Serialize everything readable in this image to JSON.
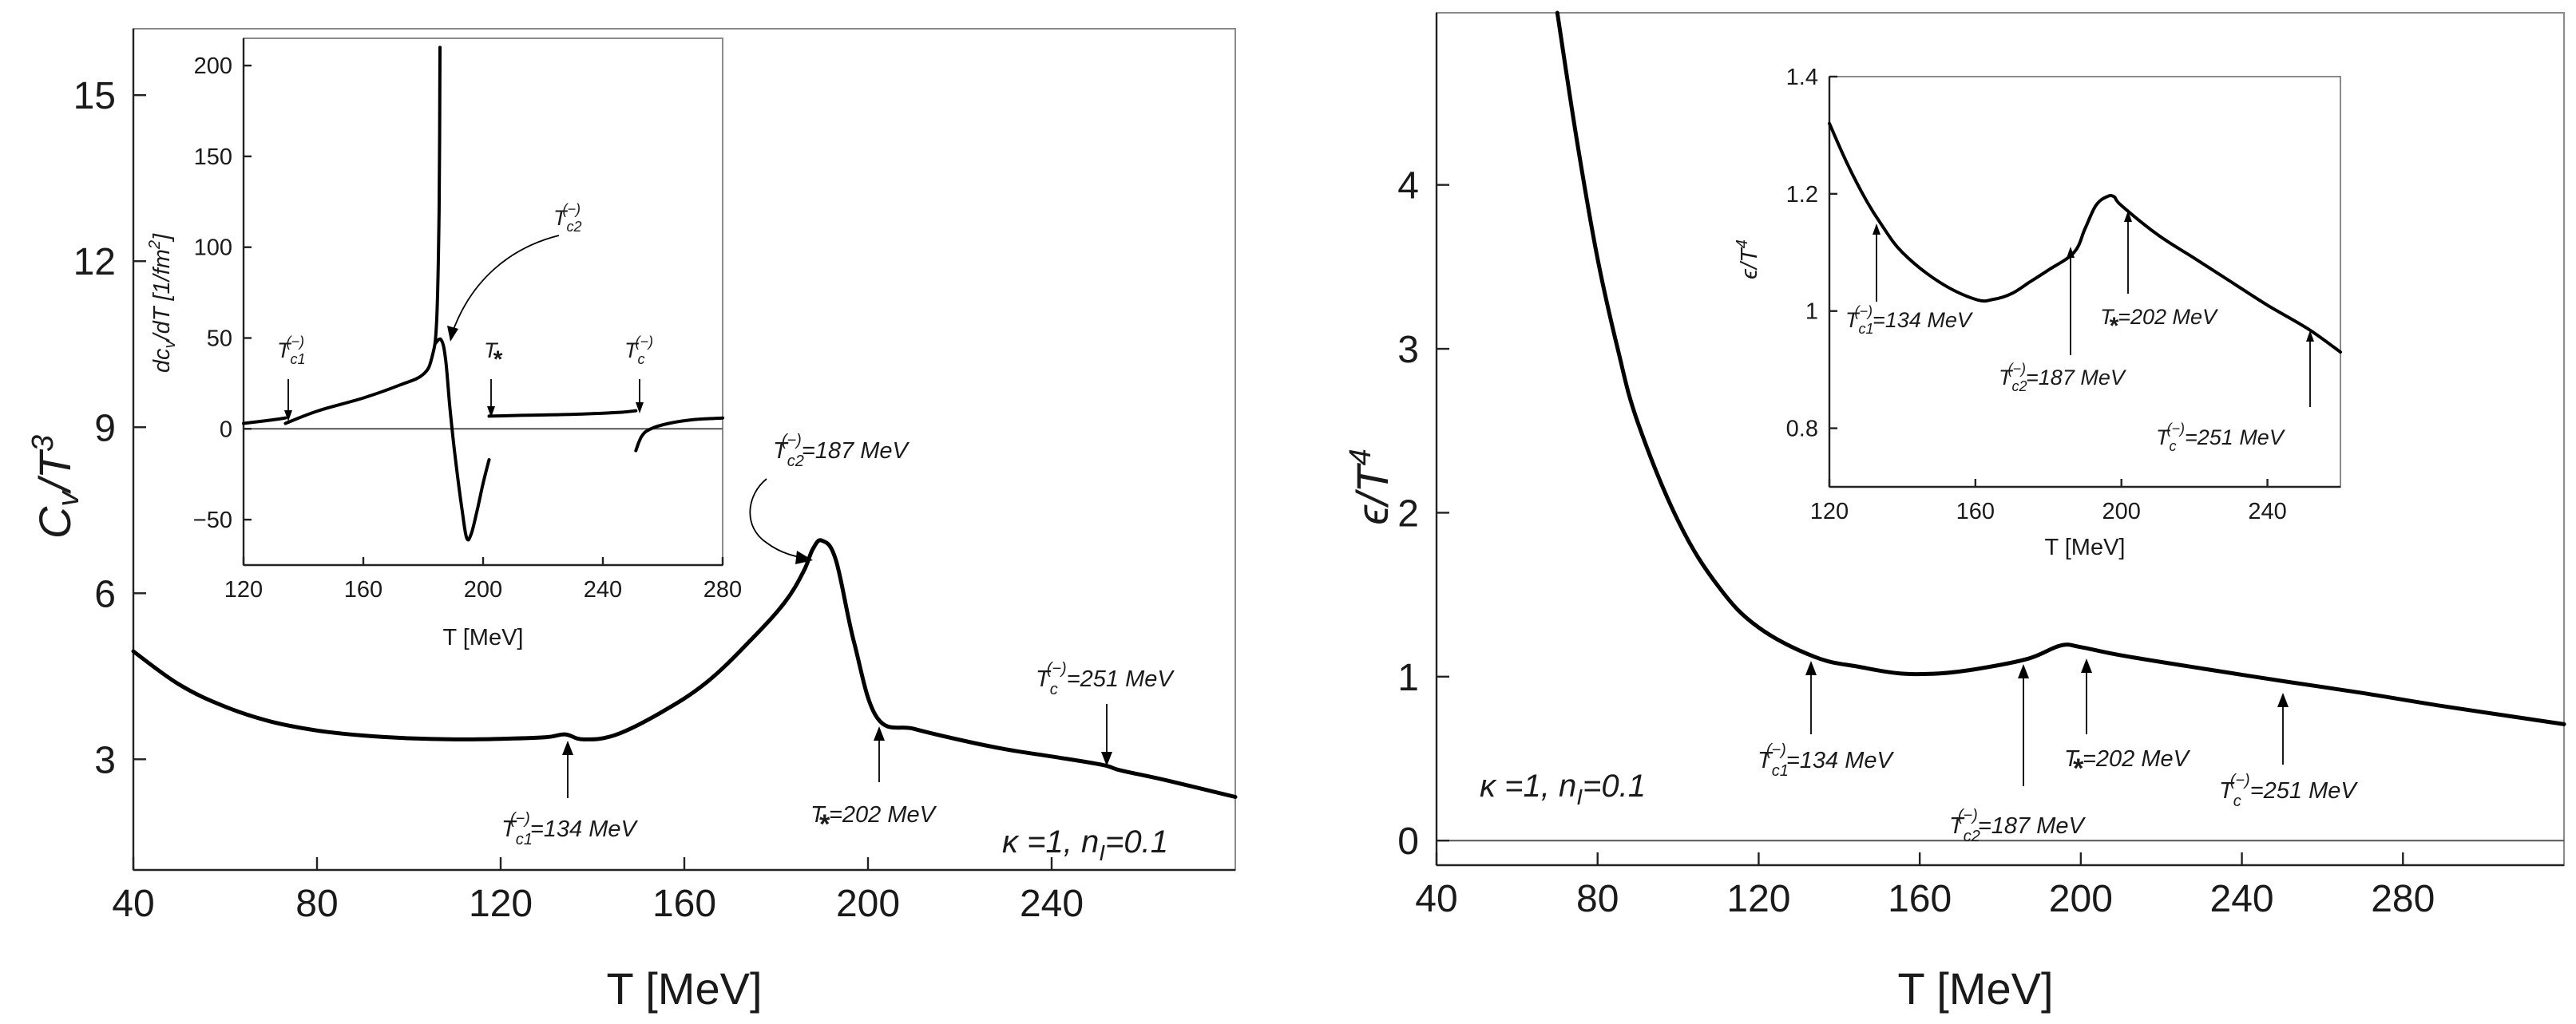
{
  "chart_data": [
    {
      "id": "cv",
      "type": "line",
      "xlabel": "T  [MeV]",
      "ylabel": "C_v/T^3",
      "xlim": [
        40,
        280
      ],
      "ylim": [
        1,
        16.2
      ],
      "xticks": [
        40,
        80,
        120,
        160,
        200,
        240
      ],
      "yticks": [
        3,
        6,
        9,
        12,
        15
      ],
      "grid": false,
      "note": "κ=1, n_I=0.1",
      "series": [
        {
          "name": "C_v/T^3",
          "x": [
            40,
            50,
            60,
            70,
            80,
            90,
            100,
            110,
            120,
            130,
            134,
            138,
            145,
            155,
            165,
            175,
            182,
            186,
            188,
            190,
            193,
            197,
            202,
            210,
            220,
            230,
            240,
            251,
            255,
            265,
            280
          ],
          "y": [
            4.95,
            4.35,
            3.95,
            3.68,
            3.52,
            3.43,
            3.38,
            3.36,
            3.37,
            3.4,
            3.45,
            3.36,
            3.44,
            3.85,
            4.4,
            5.2,
            5.85,
            6.4,
            6.8,
            6.95,
            6.6,
            5.1,
            3.75,
            3.55,
            3.35,
            3.18,
            3.05,
            2.9,
            2.8,
            2.62,
            2.32
          ]
        }
      ],
      "annotations": [
        {
          "label": "T",
          "sub": "c1",
          "sup": "(-)",
          "value": "=134 MeV",
          "x": 134
        },
        {
          "label": "T",
          "sub": "c2",
          "sup": "(-)",
          "value": "=187 MeV",
          "x": 187
        },
        {
          "label": "T",
          "sub": "*",
          "sup": "",
          "value": "=202 MeV",
          "x": 202
        },
        {
          "label": "T",
          "sub": "c",
          "sup": "(-)",
          "value": "=251 MeV",
          "x": 251
        }
      ]
    },
    {
      "id": "cv-inset",
      "type": "line",
      "xlabel": "T  [MeV]",
      "ylabel": "dc_v/dT  [1/fm^2]",
      "xlim": [
        120,
        280
      ],
      "ylim": [
        -75,
        215
      ],
      "xticks": [
        120,
        160,
        200,
        240,
        280
      ],
      "yticks": [
        -50,
        0,
        50,
        100,
        150,
        200
      ],
      "series": [
        {
          "name": "segment-1",
          "x": [
            120,
            130,
            134
          ],
          "y": [
            3,
            5,
            6
          ]
        },
        {
          "name": "segment-2",
          "x": [
            134,
            145,
            160,
            172,
            180,
            183,
            184.5,
            185.3,
            185.6
          ],
          "y": [
            3,
            10,
            17,
            24,
            30,
            40,
            60,
            120,
            210
          ]
        },
        {
          "name": "segment-3",
          "x": [
            184,
            186,
            187.5,
            189,
            191,
            193,
            194.5,
            196,
            198,
            200,
            202
          ],
          "y": [
            47,
            49,
            38,
            10,
            -20,
            -45,
            -60,
            -58,
            -45,
            -30,
            -17
          ]
        },
        {
          "name": "segment-4",
          "x": [
            202,
            215,
            230,
            245,
            251
          ],
          "y": [
            7,
            7.5,
            8,
            9,
            10
          ]
        },
        {
          "name": "segment-5",
          "x": [
            251,
            253,
            256,
            262,
            270,
            280
          ],
          "y": [
            -12,
            -4,
            0,
            3,
            5,
            6
          ]
        }
      ],
      "annotations": [
        {
          "label": "T",
          "sub": "c1",
          "sup": "(-)",
          "x": 134
        },
        {
          "label": "T",
          "sub": "c2",
          "sup": "(-)",
          "x": 186
        },
        {
          "label": "T",
          "sub": "*",
          "sup": "",
          "x": 202
        },
        {
          "label": "T",
          "sub": "c",
          "sup": "(-)",
          "x": 251
        }
      ]
    },
    {
      "id": "eps",
      "type": "line",
      "xlabel": "T  [MeV]",
      "ylabel": "ε/T^4",
      "xlim": [
        40,
        320
      ],
      "ylim": [
        -0.15,
        5.05
      ],
      "xticks": [
        40,
        80,
        120,
        160,
        200,
        240,
        280
      ],
      "yticks": [
        0,
        1,
        2,
        3,
        4
      ],
      "grid": false,
      "note": "κ=1, n_I=0.1",
      "series": [
        {
          "name": "ε/T^4",
          "x": [
            70,
            75,
            80,
            85,
            90,
            100,
            110,
            120,
            134,
            145,
            155,
            165,
            175,
            187,
            195,
            200,
            210,
            230,
            251,
            270,
            290,
            320
          ],
          "y": [
            5.05,
            4.25,
            3.55,
            3.0,
            2.55,
            1.95,
            1.55,
            1.3,
            1.12,
            1.06,
            1.02,
            1.02,
            1.05,
            1.11,
            1.19,
            1.18,
            1.13,
            1.05,
            0.97,
            0.9,
            0.82,
            0.71
          ]
        }
      ],
      "annotations": [
        {
          "label": "T",
          "sub": "c1",
          "sup": "(-)",
          "value": "=134 MeV",
          "x": 134
        },
        {
          "label": "T",
          "sub": "c2",
          "sup": "(-)",
          "value": "=187 MeV",
          "x": 187
        },
        {
          "label": "T",
          "sub": "*",
          "sup": "",
          "value": "=202 MeV",
          "x": 202
        },
        {
          "label": "T",
          "sub": "c",
          "sup": "(-)",
          "value": "=251 MeV",
          "x": 251
        }
      ]
    },
    {
      "id": "eps-inset",
      "type": "line",
      "xlabel": "T  [MeV]",
      "ylabel": "ε/T^4",
      "xlim": [
        120,
        260
      ],
      "ylim": [
        0.7,
        1.4
      ],
      "xticks": [
        120,
        160,
        200,
        240
      ],
      "yticks": [
        0.8,
        1,
        1.2,
        1.4
      ],
      "ytick_labels": [
        "0.8",
        "1",
        "1.2",
        "1.4"
      ],
      "series": [
        {
          "name": "ε/T^4",
          "x": [
            120,
            125,
            130,
            134,
            140,
            150,
            160,
            165,
            170,
            175,
            180,
            187,
            190,
            193,
            196,
            198,
            200,
            210,
            220,
            230,
            240,
            251,
            260
          ],
          "y": [
            1.32,
            1.25,
            1.19,
            1.15,
            1.1,
            1.05,
            1.02,
            1.02,
            1.03,
            1.05,
            1.07,
            1.1,
            1.14,
            1.18,
            1.195,
            1.195,
            1.18,
            1.13,
            1.09,
            1.05,
            1.01,
            0.97,
            0.93
          ]
        }
      ],
      "annotations": [
        {
          "label": "T",
          "sub": "c1",
          "sup": "(-)",
          "value": "=134 MeV",
          "x": 134
        },
        {
          "label": "T",
          "sub": "c2",
          "sup": "(-)",
          "value": "=187 MeV",
          "x": 187
        },
        {
          "label": "T",
          "sub": "*",
          "sup": "",
          "value": "=202 MeV",
          "x": 202
        },
        {
          "label": "T",
          "sub": "c",
          "sup": "(-)",
          "value": "=251 MeV",
          "x": 251
        }
      ]
    }
  ],
  "labels": {
    "T": "T",
    "star": "*",
    "sup_minus": "(−)",
    "sub_c1": "c1",
    "sub_c2": "c2",
    "sub_c": "c",
    "eq134": "=134 MeV",
    "eq187": "=187 MeV",
    "eq202": "=202 MeV",
    "eq251": "=251 MeV",
    "kappa_part": "κ =1, n",
    "kappa_sub": "I",
    "kappa_end": "=0.1",
    "cv_ylabel_C": "C",
    "cv_ylabel_v": "v",
    "cv_ylabel_T": "/T",
    "cv_ylabel_3": "3",
    "eps_ylabel_eps": "ϵ/T",
    "eps_ylabel_4": "4",
    "inset_cv_d": "dc",
    "inset_cv_v": "v",
    "inset_cv_rest": "/dT  [1/fm",
    "inset_cv_2": "2",
    "inset_cv_close": "]",
    "xlabel_big": "T  [MeV]",
    "xlabel_small": "T  [MeV]"
  }
}
